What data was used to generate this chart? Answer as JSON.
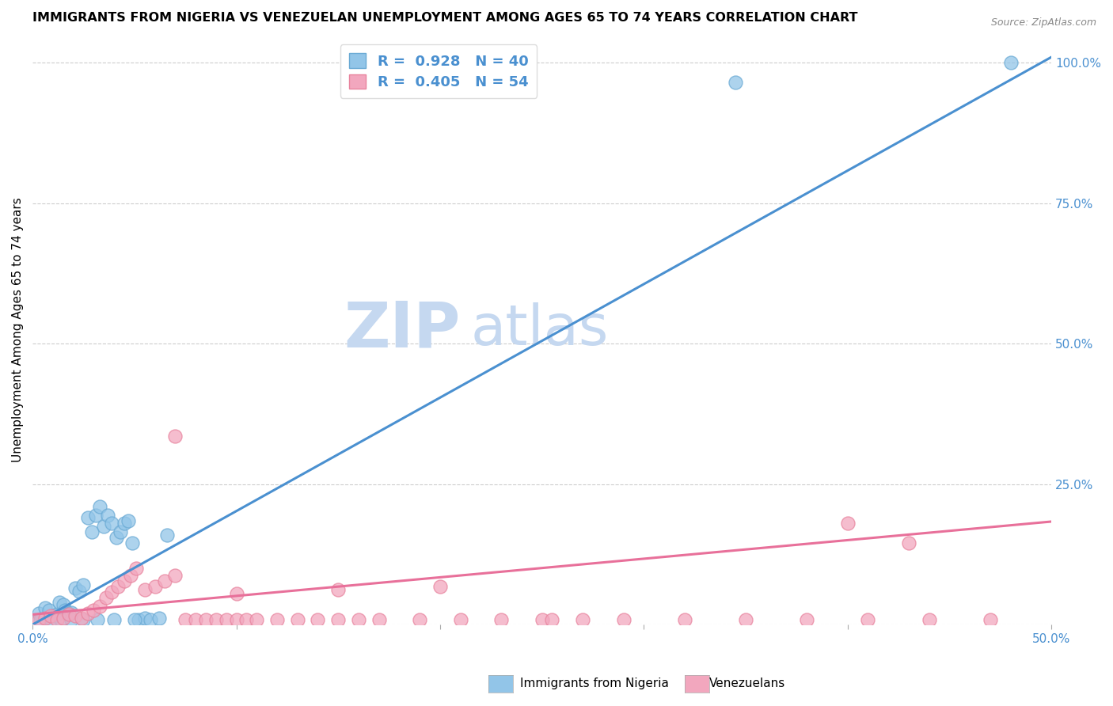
{
  "title": "IMMIGRANTS FROM NIGERIA VS VENEZUELAN UNEMPLOYMENT AMONG AGES 65 TO 74 YEARS CORRELATION CHART",
  "source": "Source: ZipAtlas.com",
  "ylabel": "Unemployment Among Ages 65 to 74 years",
  "xlim": [
    0.0,
    0.5
  ],
  "ylim": [
    0.0,
    1.05
  ],
  "xticks": [
    0.0,
    0.1,
    0.2,
    0.3,
    0.4,
    0.5
  ],
  "xticklabels": [
    "0.0%",
    "",
    "",
    "",
    "",
    "50.0%"
  ],
  "yticks_right": [
    0.0,
    0.25,
    0.5,
    0.75,
    1.0
  ],
  "yticklabels_right": [
    "",
    "25.0%",
    "50.0%",
    "75.0%",
    "100.0%"
  ],
  "watermark_zip": "ZIP",
  "watermark_atlas": "atlas",
  "blue_R": "0.928",
  "blue_N": "40",
  "pink_R": "0.405",
  "pink_N": "54",
  "blue_color": "#92C5E8",
  "pink_color": "#F2A7BE",
  "blue_edge_color": "#6AAAD4",
  "pink_edge_color": "#E8849E",
  "blue_line_color": "#4A90D0",
  "pink_line_color": "#E8709A",
  "legend_label_blue": "Immigrants from Nigeria",
  "legend_label_pink": "Venezuelans",
  "blue_scatter_x": [
    0.003,
    0.006,
    0.008,
    0.01,
    0.012,
    0.013,
    0.015,
    0.016,
    0.018,
    0.019,
    0.021,
    0.023,
    0.025,
    0.027,
    0.029,
    0.031,
    0.033,
    0.035,
    0.037,
    0.039,
    0.041,
    0.043,
    0.045,
    0.047,
    0.049,
    0.052,
    0.055,
    0.058,
    0.062,
    0.066,
    0.004,
    0.009,
    0.014,
    0.019,
    0.025,
    0.032,
    0.04,
    0.05,
    0.345,
    0.48
  ],
  "blue_scatter_y": [
    0.02,
    0.03,
    0.025,
    0.015,
    0.018,
    0.04,
    0.035,
    0.025,
    0.02,
    0.022,
    0.065,
    0.06,
    0.07,
    0.19,
    0.165,
    0.195,
    0.21,
    0.175,
    0.195,
    0.18,
    0.155,
    0.165,
    0.18,
    0.185,
    0.145,
    0.008,
    0.012,
    0.008,
    0.012,
    0.16,
    0.008,
    0.008,
    0.008,
    0.008,
    0.008,
    0.008,
    0.008,
    0.008,
    0.965,
    1.0
  ],
  "pink_scatter_x": [
    0.003,
    0.006,
    0.009,
    0.012,
    0.015,
    0.018,
    0.021,
    0.024,
    0.027,
    0.03,
    0.033,
    0.036,
    0.039,
    0.042,
    0.045,
    0.048,
    0.051,
    0.055,
    0.06,
    0.065,
    0.07,
    0.075,
    0.08,
    0.085,
    0.09,
    0.095,
    0.1,
    0.105,
    0.11,
    0.12,
    0.13,
    0.14,
    0.15,
    0.16,
    0.17,
    0.19,
    0.21,
    0.23,
    0.25,
    0.27,
    0.29,
    0.32,
    0.35,
    0.38,
    0.41,
    0.44,
    0.47,
    0.1,
    0.15,
    0.2,
    0.255,
    0.4,
    0.43,
    0.07
  ],
  "pink_scatter_y": [
    0.008,
    0.012,
    0.015,
    0.008,
    0.012,
    0.018,
    0.015,
    0.012,
    0.02,
    0.025,
    0.032,
    0.048,
    0.058,
    0.068,
    0.078,
    0.088,
    0.1,
    0.062,
    0.068,
    0.078,
    0.088,
    0.008,
    0.008,
    0.008,
    0.008,
    0.008,
    0.008,
    0.008,
    0.008,
    0.008,
    0.008,
    0.008,
    0.008,
    0.008,
    0.008,
    0.008,
    0.008,
    0.008,
    0.008,
    0.008,
    0.008,
    0.008,
    0.008,
    0.008,
    0.008,
    0.008,
    0.008,
    0.055,
    0.062,
    0.068,
    0.008,
    0.18,
    0.145,
    0.335
  ],
  "blue_trendline_x": [
    0.0,
    0.505
  ],
  "blue_trendline_y": [
    0.0,
    1.02
  ],
  "pink_trendline_x": [
    0.0,
    0.505
  ],
  "pink_trendline_y": [
    0.018,
    0.185
  ],
  "grid_color": "#CCCCCC",
  "bg_color": "#FFFFFF",
  "title_fontsize": 11.5,
  "axis_label_fontsize": 11,
  "tick_fontsize": 11,
  "watermark_color": "#C5D8F0",
  "source_text": "Source: ZipAtlas.com"
}
